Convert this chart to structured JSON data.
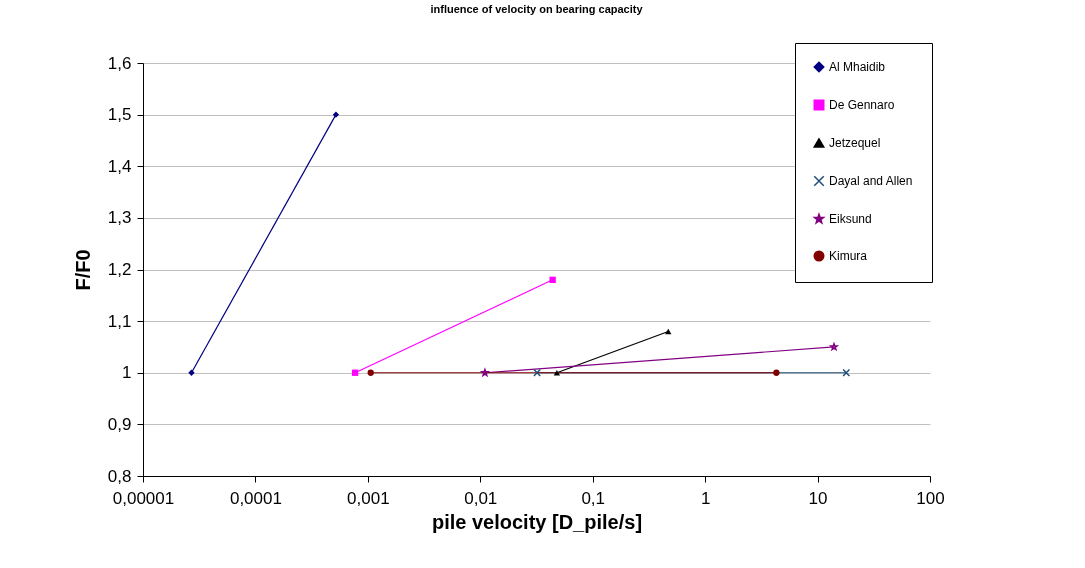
{
  "chart_data": {
    "type": "line",
    "title": "influence of velocity on bearing capacity",
    "xlabel": "pile velocity [D_pile/s]",
    "ylabel": "F/F0",
    "log": "x",
    "grid": "y",
    "legend": "top right",
    "line_style": "solid",
    "xlim": [
      1e-05,
      100
    ],
    "ylim": [
      0.8,
      1.6
    ],
    "xticks": [
      {
        "value": 1e-05,
        "label": "0,00001"
      },
      {
        "value": 0.0001,
        "label": "0,0001"
      },
      {
        "value": 0.001,
        "label": "0,001"
      },
      {
        "value": 0.01,
        "label": "0,01"
      },
      {
        "value": 0.1,
        "label": "0,1"
      },
      1,
      10,
      100
    ],
    "yticks": [
      {
        "value": 0.8,
        "label": "0,8"
      },
      {
        "value": 0.9,
        "label": "0,9"
      },
      1,
      {
        "value": 1.1,
        "label": "1,1"
      },
      {
        "value": 1.2,
        "label": "1,2"
      },
      {
        "value": 1.3,
        "label": "1,3"
      },
      {
        "value": 1.4,
        "label": "1,4"
      },
      {
        "value": 1.5,
        "label": "1,5"
      },
      {
        "value": 1.6,
        "label": "1,6"
      }
    ],
    "series": [
      {
        "name": "Al Mhaidib",
        "color": "#000080",
        "marker": "diamond",
        "x": [
          2.7e-05,
          0.00052
        ],
        "values": [
          1.0,
          1.5
        ]
      },
      {
        "name": "De Gennaro",
        "color": "#ff00ff",
        "marker": "square",
        "x": [
          0.00077,
          0.044
        ],
        "values": [
          1.0,
          1.18
        ]
      },
      {
        "name": "Jetzequel",
        "color": "#000000",
        "marker": "triangle",
        "x": [
          0.048,
          0.47
        ],
        "values": [
          1.0,
          1.08
        ]
      },
      {
        "name": "Dayal and Allen",
        "color": "#1f4e79",
        "marker": "cross",
        "x": [
          0.032,
          18
        ],
        "values": [
          1.0,
          1.0
        ]
      },
      {
        "name": "Eiksund",
        "color": "#800080",
        "marker": "star",
        "x": [
          0.011,
          14
        ],
        "values": [
          1.0,
          1.05
        ]
      },
      {
        "name": "Kimura",
        "color": "#800000",
        "marker": "circle",
        "x": [
          0.00106,
          4.3
        ],
        "values": [
          1.0,
          1.0
        ]
      }
    ]
  }
}
